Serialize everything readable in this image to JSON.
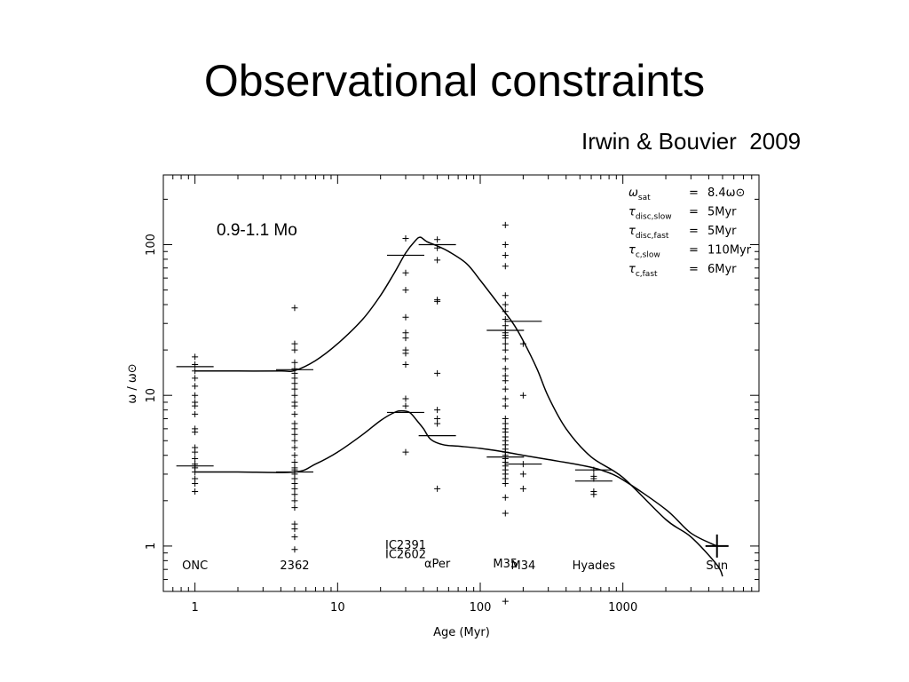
{
  "slide": {
    "title": "Observational constraints",
    "citation": "Irwin & Bouvier  2009"
  },
  "chart_data": {
    "type": "scatter",
    "title": "",
    "xlabel": "Age (Myr)",
    "ylabel": "ω / ω⊙",
    "x_scale": "log",
    "y_scale": "log",
    "xlim": [
      0.6,
      9000
    ],
    "ylim": [
      0.5,
      290
    ],
    "x_ticks": [
      1,
      10,
      100,
      1000
    ],
    "x_tick_labels": [
      "1",
      "10",
      "100",
      "1000"
    ],
    "y_ticks": [
      1,
      10,
      100
    ],
    "y_tick_labels": [
      "1",
      "10",
      "100"
    ],
    "mass_label": "0.9-1.1 Mo",
    "legend": [
      {
        "symbol": "ω",
        "sub": "sat",
        "value": "8.4ω⊙"
      },
      {
        "symbol": "τ",
        "sub": "disc,slow",
        "value": "5Myr"
      },
      {
        "symbol": "τ",
        "sub": "disc,fast",
        "value": "5Myr"
      },
      {
        "symbol": "τ",
        "sub": "c,slow",
        "value": "110Myr"
      },
      {
        "symbol": "τ",
        "sub": "c,fast",
        "value": "6Myr"
      }
    ],
    "cluster_labels": [
      {
        "text": "ONC",
        "x": 1.0,
        "y": 0.7
      },
      {
        "text": "2362",
        "x": 5.0,
        "y": 0.7
      },
      {
        "text": "IC2391",
        "x": 30,
        "y": 0.96
      },
      {
        "text": "IC2602",
        "x": 30,
        "y": 0.83
      },
      {
        "text": "αPer",
        "x": 50,
        "y": 0.72
      },
      {
        "text": "M35",
        "x": 150,
        "y": 0.72
      },
      {
        "text": "M34",
        "x": 200,
        "y": 0.7
      },
      {
        "text": "Hyades",
        "x": 625,
        "y": 0.7
      },
      {
        "text": "Sun",
        "x": 4570,
        "y": 0.7
      }
    ],
    "points": [
      {
        "x": 1.0,
        "y": [
          18,
          16,
          14.5,
          13,
          11.5,
          10,
          9,
          8.5,
          7.5,
          6,
          5.7,
          4.5,
          4.2,
          3.8,
          3.5,
          3.4,
          3.3,
          3.1,
          2.8,
          2.6,
          2.3
        ]
      },
      {
        "x": 5.0,
        "y": [
          38,
          22,
          20,
          16.5,
          15,
          14,
          13,
          12,
          11,
          10,
          9,
          8.5,
          7.5,
          6.5,
          6,
          5.5,
          5,
          4.5,
          4,
          3.6,
          3.3,
          3.2,
          3.0,
          2.8,
          2.6,
          2.4,
          2.2,
          2.0,
          1.8,
          1.4,
          1.3,
          1.15,
          0.95
        ]
      },
      {
        "x": 30,
        "y": [
          110,
          65,
          50,
          33,
          26,
          24,
          20,
          19,
          16,
          9.5,
          8.5,
          4.2
        ]
      },
      {
        "x": 50,
        "y": [
          108,
          95,
          79,
          43,
          42,
          14,
          8,
          7,
          6.5,
          2.4
        ]
      },
      {
        "x": 150,
        "y": [
          135,
          100,
          85,
          72,
          46,
          40,
          36,
          32,
          29,
          27,
          26,
          25,
          24,
          22,
          20,
          17.5,
          15,
          13.5,
          12.5,
          11,
          9.5,
          8.5,
          7,
          6.5,
          6,
          5.7,
          5.3,
          5,
          4.7,
          4.4,
          4.2,
          4.0,
          3.8,
          3.6,
          3.4,
          3.2,
          3.0,
          2.8,
          2.6,
          2.1,
          1.65,
          0.43
        ]
      },
      {
        "x": 200,
        "y": [
          22,
          10,
          3.5,
          3.0,
          2.4
        ]
      },
      {
        "x": 625,
        "y": [
          3.2,
          2.9,
          2.8,
          2.3,
          2.2
        ]
      }
    ],
    "medians": [
      {
        "x": 1.0,
        "y": 15.5
      },
      {
        "x": 1.0,
        "y": 3.4
      },
      {
        "x": 5.0,
        "y": 14.8
      },
      {
        "x": 5.0,
        "y": 3.1
      },
      {
        "x": 30,
        "y": 85
      },
      {
        "x": 30,
        "y": 7.7
      },
      {
        "x": 50,
        "y": 100
      },
      {
        "x": 50,
        "y": 5.4
      },
      {
        "x": 150,
        "y": 27
      },
      {
        "x": 150,
        "y": 3.9
      },
      {
        "x": 200,
        "y": 31
      },
      {
        "x": 200,
        "y": 3.5
      },
      {
        "x": 625,
        "y": 3.2
      },
      {
        "x": 625,
        "y": 2.7
      }
    ],
    "sun": {
      "x": 4570,
      "y": 1.0
    },
    "series": [
      {
        "name": "",
        "x": [
          1.0,
          2,
          4,
          5,
          7,
          10,
          15,
          20,
          25,
          30,
          35,
          38,
          42,
          50,
          60,
          80,
          100,
          130,
          170,
          200,
          250,
          300,
          400,
          600,
          1000,
          2000,
          3000,
          4570,
          5000
        ],
        "y": [
          14.5,
          14.5,
          14.5,
          14.6,
          17,
          22,
          32,
          46,
          65,
          88,
          106,
          112,
          105,
          98,
          90,
          75,
          58,
          42,
          30,
          23,
          15,
          9.8,
          6.0,
          3.9,
          2.85,
          1.5,
          1.15,
          0.75,
          0.63
        ]
      },
      {
        "name": "",
        "x": [
          1.0,
          2,
          5,
          7,
          10,
          15,
          20,
          25,
          28,
          32,
          36,
          40,
          45,
          55,
          70,
          100,
          150,
          200,
          300,
          500,
          700,
          1000,
          2000,
          3000,
          4570
        ],
        "y": [
          3.1,
          3.1,
          3.1,
          3.5,
          4.2,
          5.5,
          6.8,
          7.7,
          7.9,
          7.7,
          6.8,
          6.0,
          5.1,
          4.7,
          4.6,
          4.45,
          4.2,
          4.0,
          3.75,
          3.45,
          3.2,
          2.75,
          1.75,
          1.22,
          1.0
        ]
      }
    ]
  }
}
